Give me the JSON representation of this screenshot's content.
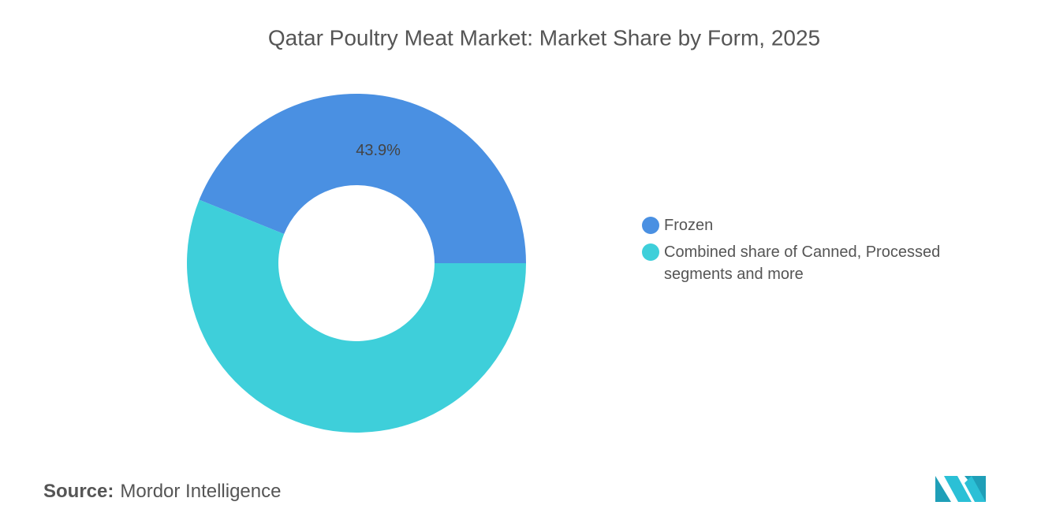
{
  "chart_data": {
    "type": "donut",
    "title": "Qatar Poultry Meat Market: Market Share by Form, 2025",
    "categories": [
      "Frozen",
      "Combined share of Canned, Processed segments and more"
    ],
    "values": [
      43.9,
      56.1
    ],
    "value_labels": [
      "43.9%",
      null
    ],
    "colors": [
      "#4a90e2",
      "#3ecfda"
    ],
    "legend": "right",
    "source_label": "Source:",
    "source": "Mordor Intelligence"
  }
}
